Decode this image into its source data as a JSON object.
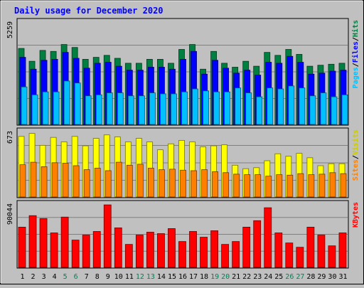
{
  "chart_data": {
    "type": "bar",
    "title": "Daily usage for December 2020",
    "categories": [
      "1",
      "2",
      "3",
      "4",
      "5",
      "6",
      "7",
      "8",
      "9",
      "10",
      "11",
      "12",
      "13",
      "14",
      "15",
      "16",
      "17",
      "18",
      "19",
      "20",
      "21",
      "22",
      "23",
      "24",
      "25",
      "26",
      "27",
      "28",
      "29",
      "30",
      "31"
    ],
    "weekend_days": [
      "5",
      "6",
      "12",
      "13",
      "19",
      "20",
      "26",
      "27"
    ],
    "panels": [
      {
        "id": "hits-files-pages",
        "ymax_label": "5259",
        "ymax": 5259,
        "series": [
          {
            "name": "Hits",
            "color": "#008040",
            "values": [
              3850,
              3200,
              3750,
              3700,
              4050,
              3900,
              3300,
              3400,
              3500,
              3350,
              3100,
              3100,
              3300,
              3300,
              3100,
              3800,
              4050,
              2800,
              3700,
              3100,
              2900,
              3200,
              2950,
              3650,
              3500,
              3800,
              3550,
              2950,
              3000,
              3050,
              3100
            ]
          },
          {
            "name": "Files",
            "color": "#0000ff",
            "values": [
              3400,
              2800,
              3250,
              3300,
              3650,
              3350,
              2850,
              3100,
              3150,
              2950,
              2750,
              2750,
              2900,
              2900,
              2800,
              3300,
              3700,
              2550,
              3250,
              2850,
              2600,
              2750,
              2500,
              3150,
              3100,
              3450,
              3150,
              2550,
              2600,
              2700,
              2750
            ]
          },
          {
            "name": "Pages",
            "color": "#00c0ff",
            "values": [
              1900,
              1500,
              1650,
              1650,
              2200,
              2100,
              1450,
              1500,
              1600,
              1600,
              1450,
              1450,
              1600,
              1550,
              1550,
              1650,
              1800,
              1700,
              1650,
              1650,
              1850,
              1600,
              1400,
              1850,
              1800,
              1950,
              1850,
              1450,
              1600,
              1400,
              1500
            ]
          }
        ],
        "legend": [
          "Pages",
          "/",
          "Files",
          "/",
          "Hits"
        ]
      },
      {
        "id": "visits-sites",
        "ymax_label": "673",
        "ymax": 673,
        "series": [
          {
            "name": "Visits",
            "color": "#ffff00",
            "values": [
              610,
              640,
              520,
              600,
              555,
              610,
              515,
              590,
              625,
              605,
              555,
              590,
              555,
              475,
              535,
              570,
              555,
              505,
              515,
              525,
              320,
              285,
              295,
              365,
              435,
              410,
              440,
              395,
              315,
              335,
              335
            ]
          },
          {
            "name": "Sites",
            "color": "#ff8000",
            "values": [
              325,
              350,
              305,
              345,
              340,
              315,
              275,
              290,
              265,
              350,
              320,
              330,
              290,
              275,
              280,
              270,
              265,
              275,
              255,
              245,
              230,
              225,
              225,
              210,
              225,
              220,
              235,
              225,
              230,
              245,
              235
            ]
          }
        ],
        "legend": [
          "Sites",
          "/",
          "Visits"
        ]
      },
      {
        "id": "kbytes",
        "ymax_label": "90044",
        "ymax": 90044,
        "series": [
          {
            "name": "KBytes",
            "color": "#ff0000",
            "values": [
              56000,
              72000,
              68000,
              48000,
              70000,
              38000,
              45000,
              50000,
              87000,
              55000,
              32000,
              45000,
              49000,
              47000,
              54000,
              36000,
              50000,
              42000,
              51000,
              32000,
              36000,
              56000,
              65000,
              83000,
              48000,
              34000,
              28000,
              56000,
              45000,
              30000,
              48000
            ]
          }
        ],
        "legend": [
          "KBytes"
        ]
      }
    ]
  }
}
